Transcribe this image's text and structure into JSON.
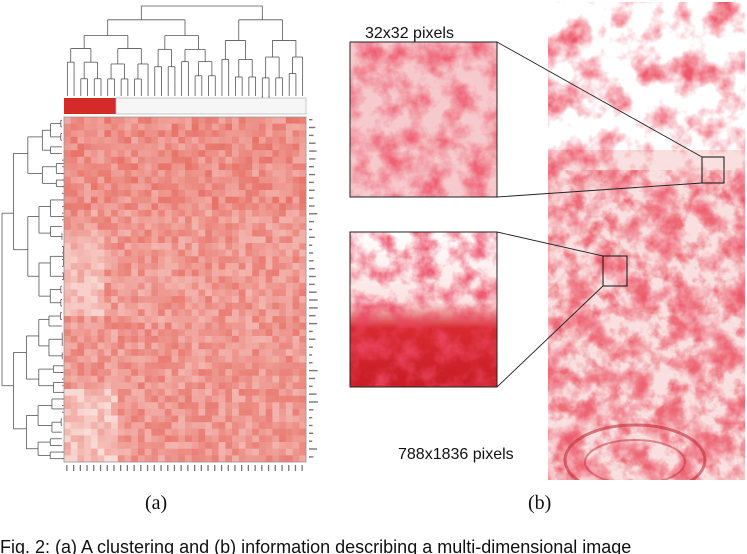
{
  "figure": {
    "label_a": "(a)",
    "label_b": "(b)",
    "patch_size_label": "32x32 pixels",
    "image_size_label": "788x1836 pixels",
    "caption": "Fig. 2: (a) A clustering and (b) information describing a multi-dimensional image"
  },
  "colors": {
    "heat_low": "#fce9e5",
    "heat_high": "#e0483c",
    "bar_red": "#d42a2a",
    "stain": "#d81e2a"
  },
  "icons": {
    "dendrogram_top": "dendrogram-icon",
    "dendrogram_left": "dendrogram-icon"
  }
}
